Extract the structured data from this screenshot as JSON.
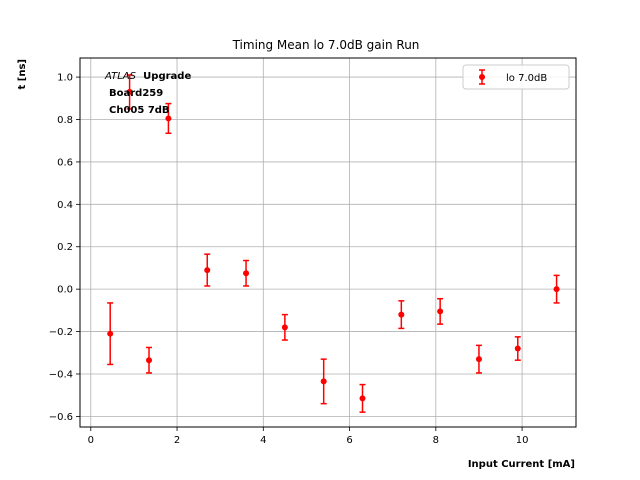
{
  "chart_data": {
    "type": "scatter",
    "title": "Timing Mean lo 7.0dB gain Run",
    "xlabel": "Input Current [mA]",
    "ylabel": "t [ns]",
    "xlim": [
      -0.25,
      11.25
    ],
    "ylim": [
      -0.65,
      1.09
    ],
    "xticks": [
      0,
      2,
      4,
      6,
      8,
      10
    ],
    "yticks": [
      -0.6,
      -0.4,
      -0.2,
      0.0,
      0.2,
      0.4,
      0.6,
      0.8,
      1.0
    ],
    "xtick_labels": [
      "0",
      "2",
      "4",
      "6",
      "8",
      "10"
    ],
    "ytick_labels": [
      "−0.6",
      "−0.4",
      "−0.2",
      "0.0",
      "0.2",
      "0.4",
      "0.6",
      "0.8",
      "1.0"
    ],
    "grid": true,
    "legend": {
      "position": "top-right",
      "entries": [
        "lo 7.0dB"
      ]
    },
    "series": [
      {
        "name": "lo 7.0dB",
        "color": "#ff0000",
        "x": [
          0.45,
          0.9,
          1.35,
          1.8,
          2.7,
          3.6,
          4.5,
          5.4,
          6.3,
          7.2,
          8.1,
          9.0,
          9.9,
          10.8
        ],
        "y": [
          -0.21,
          0.93,
          -0.335,
          0.805,
          0.09,
          0.075,
          -0.18,
          -0.435,
          -0.515,
          -0.12,
          -0.105,
          -0.33,
          -0.28,
          0.0
        ],
        "yerr": [
          0.145,
          0.08,
          0.06,
          0.07,
          0.075,
          0.06,
          0.06,
          0.105,
          0.065,
          0.065,
          0.06,
          0.065,
          0.055,
          0.065
        ]
      }
    ],
    "annotations": [
      {
        "style": "italic",
        "text": "ATLAS"
      },
      {
        "style": "bold",
        "text": "Upgrade"
      },
      {
        "style": "bold",
        "text": "Board259"
      },
      {
        "style": "bold",
        "text": "Ch005 7dB"
      }
    ]
  }
}
